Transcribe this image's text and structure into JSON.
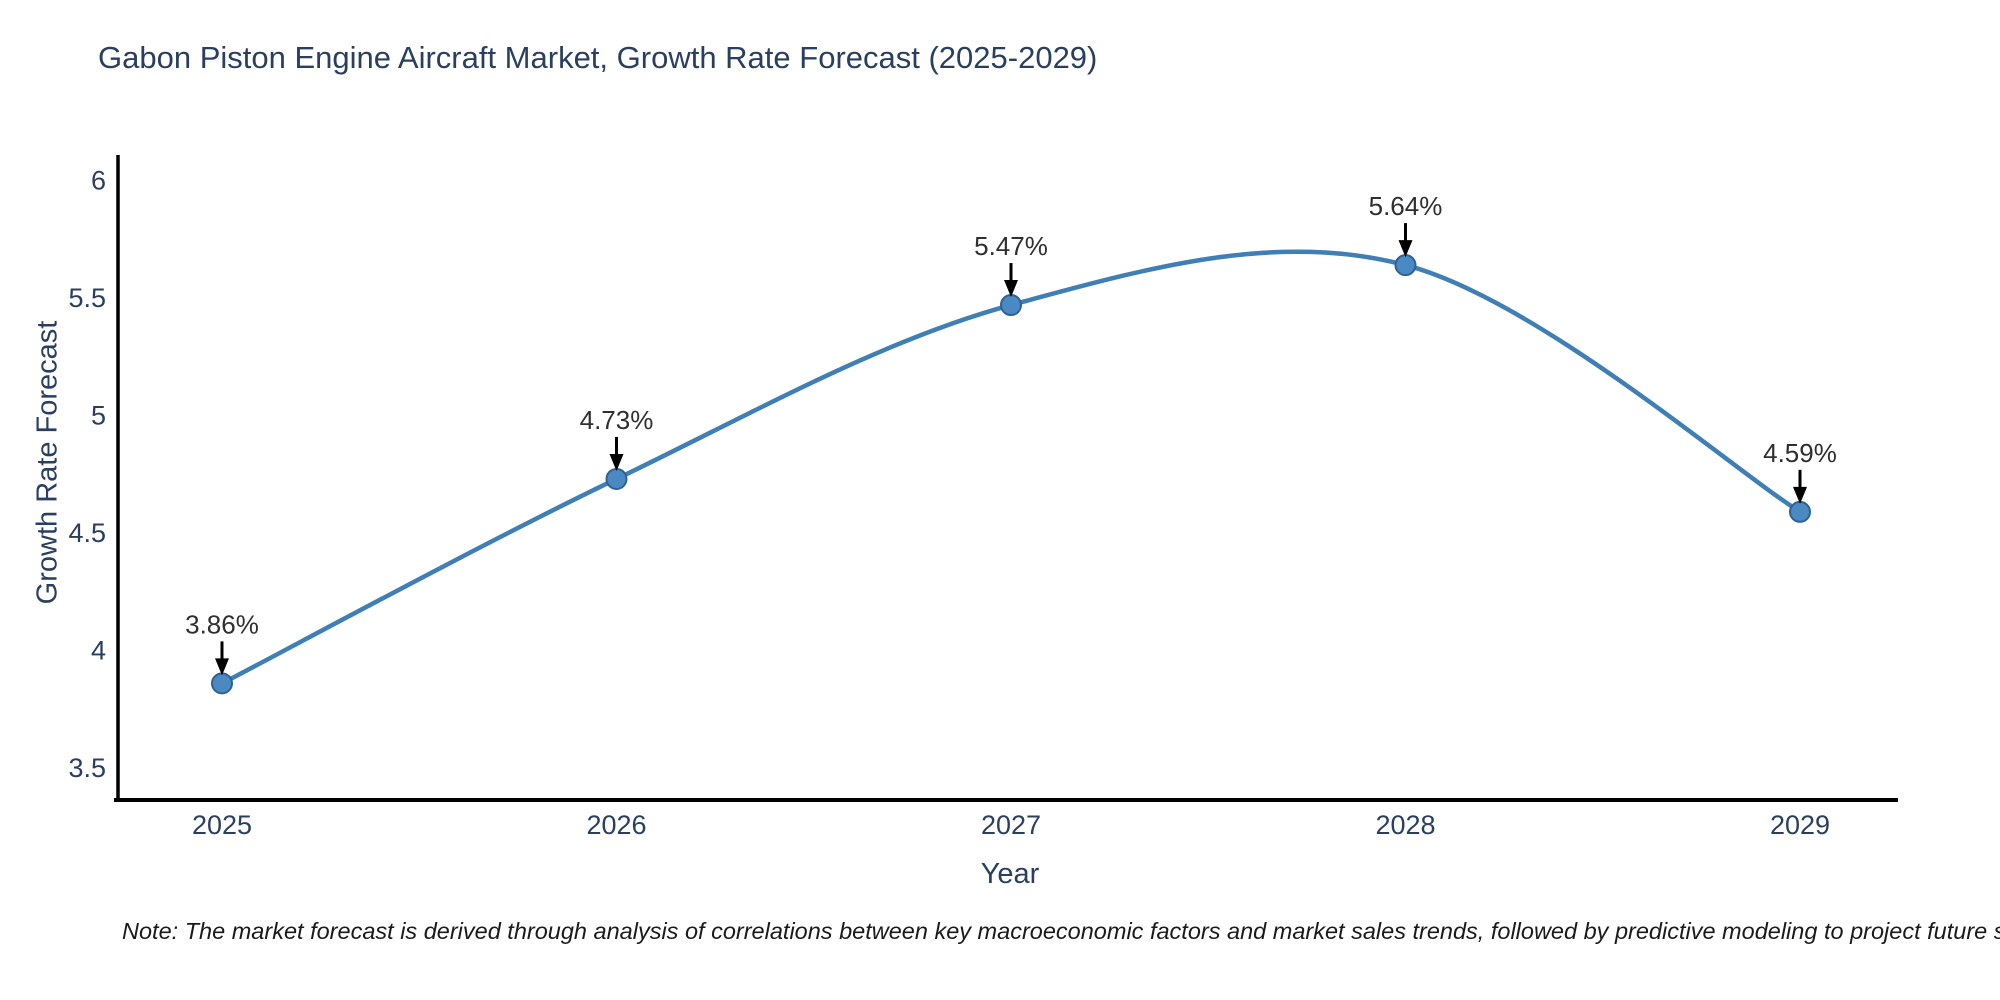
{
  "title": "Gabon Piston Engine Aircraft Market, Growth Rate Forecast (2025-2029)",
  "note_text": "Note: The market forecast is derived through analysis of correlations between key macroeconomic factors and market sales trends, followed by predictive modeling to project future sales",
  "chart_data": {
    "type": "line",
    "line_shape": "spline",
    "title": "Gabon Piston Engine Aircraft Market, Growth Rate Forecast (2025-2029)",
    "xlabel": "Year",
    "ylabel": "Growth Rate Forecast",
    "x": [
      2025,
      2026,
      2027,
      2028,
      2029
    ],
    "values": [
      3.86,
      4.73,
      5.47,
      5.64,
      4.59
    ],
    "point_labels": [
      "3.86%",
      "4.73%",
      "5.47%",
      "5.64%",
      "4.59%"
    ],
    "xtick_labels": [
      "2025",
      "2026",
      "2027",
      "2028",
      "2029"
    ],
    "yticks": [
      3.5,
      4,
      4.5,
      5,
      5.5,
      6
    ],
    "ytick_labels": [
      "3.5",
      "4",
      "4.5",
      "5",
      "5.5",
      "6"
    ],
    "ylim": [
      3.36,
      6.11
    ],
    "xlim": [
      2024.74,
      2029.25
    ],
    "grid": false,
    "legend": false,
    "colors": {
      "line": "#3f7fb5",
      "marker_fill": "#4a89c1",
      "marker_edge": "#2e6295",
      "axis": "#000000",
      "tick_text": "#2a3f5f",
      "annotation_text": "#2f2f2f",
      "arrow": "#000000",
      "background": "#ffffff"
    }
  }
}
